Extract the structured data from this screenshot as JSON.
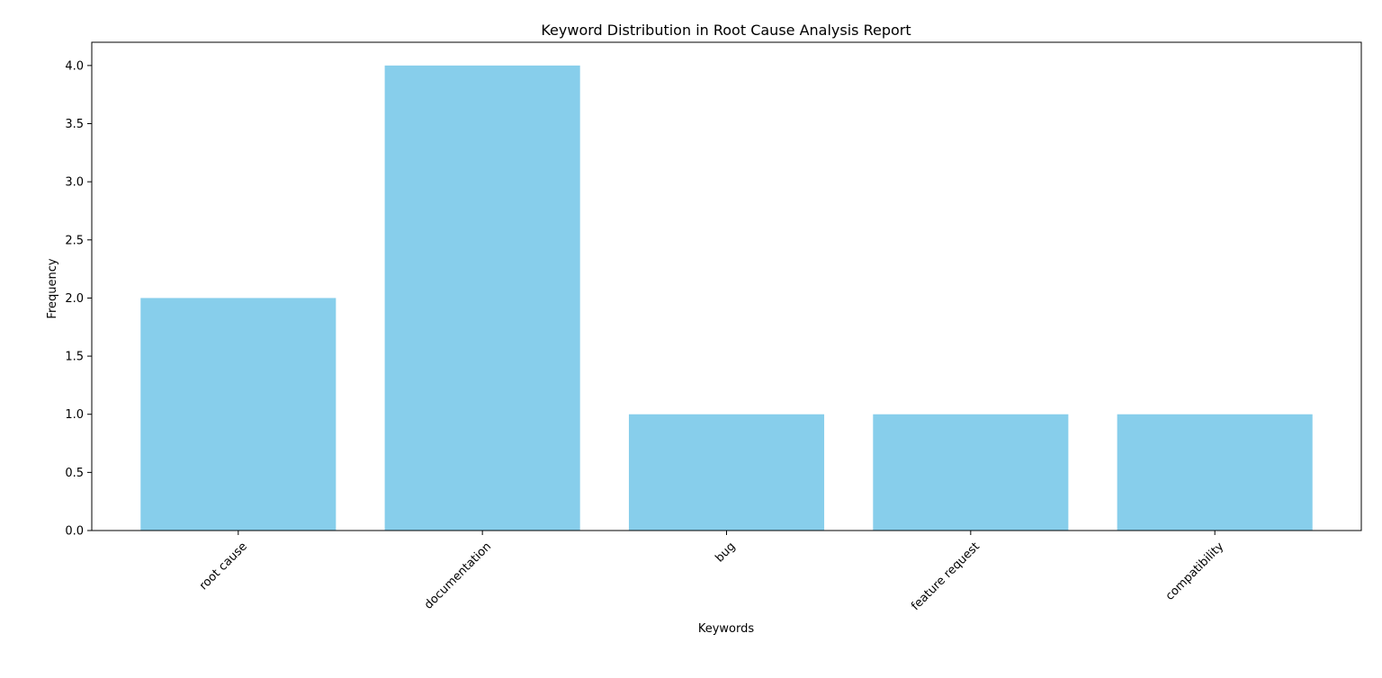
{
  "chart_data": {
    "type": "bar",
    "title": "Keyword Distribution in Root Cause Analysis Report",
    "xlabel": "Keywords",
    "ylabel": "Frequency",
    "categories": [
      "root cause",
      "documentation",
      "bug",
      "feature request",
      "compatibility"
    ],
    "values": [
      2,
      4,
      1,
      1,
      1
    ],
    "ylim": [
      0,
      4.2
    ],
    "yticks": [
      "0.0",
      "0.5",
      "1.0",
      "1.5",
      "2.0",
      "2.5",
      "3.0",
      "3.5",
      "4.0"
    ],
    "grid": false,
    "legend": "none",
    "bar_color": "#87CEEB",
    "xtick_rotation_deg": 45
  }
}
